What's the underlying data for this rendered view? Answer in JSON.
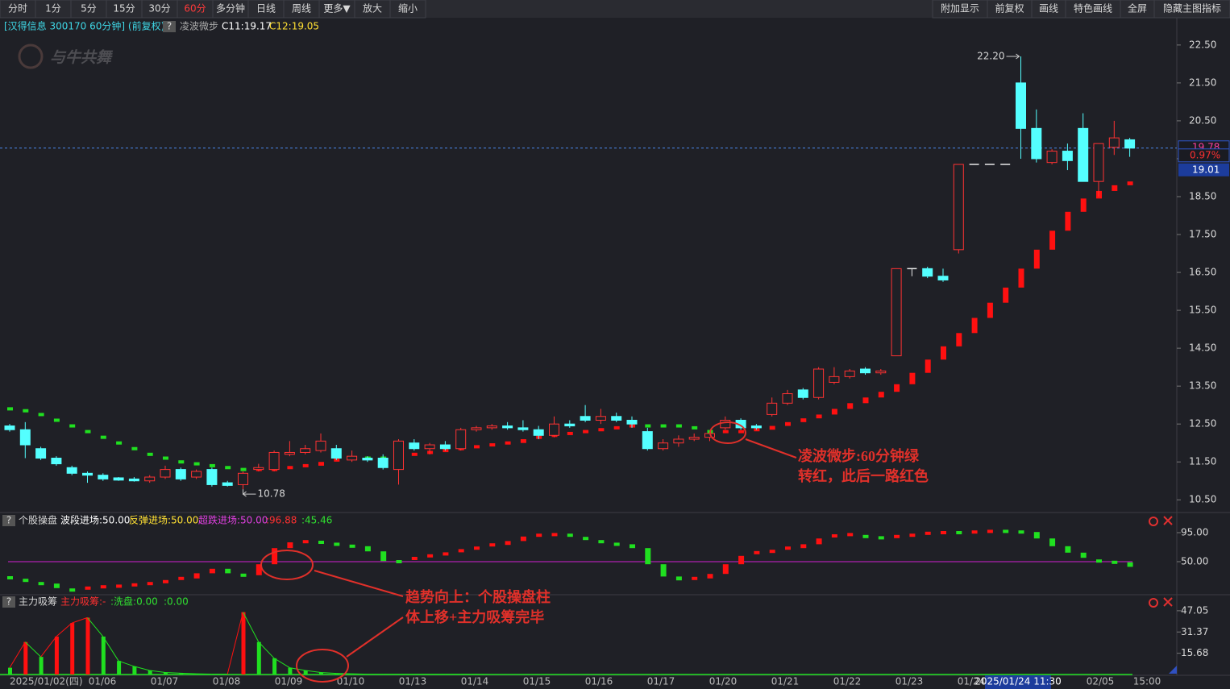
{
  "toolbar": {
    "left": [
      "分时",
      "1分",
      "5分",
      "15分",
      "30分",
      "60分",
      "多分钟",
      "日线",
      "周线",
      "更多▼",
      "放大",
      "缩小"
    ],
    "right": [
      "附加显示",
      "前复权",
      "画线",
      "特色画线",
      "全屏",
      "隐藏主图指标"
    ],
    "active": "60分"
  },
  "logo": "与牛共舞",
  "main": {
    "title": "[汉得信息 300170 60分钟] (前复权)",
    "help": "?",
    "indicator": "凌波微步",
    "c11": "C11:19.17",
    "c12": "C12:19.05",
    "ylim": [
      10.25,
      23.22
    ],
    "yticks": [
      {
        "value": 10.5,
        "label": "10.50"
      },
      {
        "value": 11.5,
        "label": "11.50"
      },
      {
        "value": 12.5,
        "label": "12.50"
      },
      {
        "value": 13.5,
        "label": "13.50"
      },
      {
        "value": 14.5,
        "label": "14.50"
      },
      {
        "value": 15.5,
        "label": "15.50"
      },
      {
        "value": 16.5,
        "label": "16.50"
      },
      {
        "value": 17.5,
        "label": "17.50"
      },
      {
        "value": 18.5,
        "label": "18.50"
      },
      {
        "value": 19.5,
        "label": "19.50"
      },
      {
        "value": 20.5,
        "label": "20.50"
      },
      {
        "value": 21.5,
        "label": "21.50"
      },
      {
        "value": 22.5,
        "label": "22.50"
      }
    ],
    "candles": [
      [
        12.45,
        12.5,
        12.3,
        12.35
      ],
      [
        12.35,
        12.55,
        11.6,
        11.95
      ],
      [
        11.85,
        11.9,
        11.55,
        11.6
      ],
      [
        11.6,
        11.65,
        11.4,
        11.45
      ],
      [
        11.35,
        11.4,
        11.15,
        11.2
      ],
      [
        11.2,
        11.25,
        10.95,
        11.15
      ],
      [
        11.15,
        11.2,
        11.0,
        11.05
      ],
      [
        11.08,
        11.1,
        11.0,
        11.02
      ],
      [
        11.05,
        11.1,
        10.98,
        11.0
      ],
      [
        11.0,
        11.15,
        10.95,
        11.1
      ],
      [
        11.1,
        11.4,
        11.05,
        11.3
      ],
      [
        11.3,
        11.35,
        11.0,
        11.05
      ],
      [
        11.1,
        11.3,
        11.05,
        11.25
      ],
      [
        11.3,
        11.35,
        10.85,
        10.9
      ],
      [
        10.95,
        11.0,
        10.85,
        10.88
      ],
      [
        10.9,
        11.25,
        10.78,
        11.2
      ],
      [
        11.3,
        11.45,
        11.25,
        11.35
      ],
      [
        11.3,
        11.8,
        11.25,
        11.75
      ],
      [
        11.7,
        12.05,
        11.65,
        11.75
      ],
      [
        11.75,
        11.95,
        11.7,
        11.85
      ],
      [
        11.8,
        12.25,
        11.75,
        12.05
      ],
      [
        11.85,
        11.95,
        11.55,
        11.6
      ],
      [
        11.55,
        11.8,
        11.5,
        11.65
      ],
      [
        11.6,
        11.65,
        11.5,
        11.55
      ],
      [
        11.6,
        11.7,
        11.3,
        11.35
      ],
      [
        11.3,
        12.1,
        10.9,
        12.05
      ],
      [
        12.0,
        12.1,
        11.8,
        11.85
      ],
      [
        11.85,
        12.0,
        11.7,
        11.95
      ],
      [
        11.95,
        12.05,
        11.8,
        11.85
      ],
      [
        11.85,
        12.4,
        11.8,
        12.35
      ],
      [
        12.35,
        12.45,
        12.3,
        12.4
      ],
      [
        12.4,
        12.5,
        12.35,
        12.45
      ],
      [
        12.45,
        12.55,
        12.35,
        12.4
      ],
      [
        12.4,
        12.6,
        12.3,
        12.35
      ],
      [
        12.35,
        12.45,
        12.1,
        12.2
      ],
      [
        12.2,
        12.7,
        12.15,
        12.5
      ],
      [
        12.5,
        12.6,
        12.4,
        12.45
      ],
      [
        12.7,
        13.0,
        12.55,
        12.6
      ],
      [
        12.6,
        12.9,
        12.5,
        12.7
      ],
      [
        12.7,
        12.8,
        12.55,
        12.6
      ],
      [
        12.6,
        12.7,
        12.4,
        12.5
      ],
      [
        12.3,
        12.4,
        11.8,
        11.85
      ],
      [
        11.85,
        12.1,
        11.8,
        12.0
      ],
      [
        12.0,
        12.2,
        11.9,
        12.1
      ],
      [
        12.1,
        12.25,
        12.05,
        12.15
      ],
      [
        12.15,
        12.3,
        12.05,
        12.25
      ],
      [
        12.4,
        12.7,
        12.35,
        12.6
      ],
      [
        12.6,
        12.65,
        12.35,
        12.4
      ],
      [
        12.45,
        12.5,
        12.35,
        12.4
      ],
      [
        12.75,
        13.2,
        12.7,
        13.05
      ],
      [
        13.05,
        13.4,
        13.0,
        13.3
      ],
      [
        13.4,
        13.45,
        13.15,
        13.2
      ],
      [
        13.2,
        14.0,
        13.15,
        13.95
      ],
      [
        13.6,
        14.0,
        13.55,
        13.75
      ],
      [
        13.75,
        13.95,
        13.7,
        13.9
      ],
      [
        13.95,
        14.0,
        13.8,
        13.85
      ],
      [
        13.85,
        13.95,
        13.8,
        13.9
      ],
      [
        14.3,
        16.6,
        14.3,
        16.6
      ],
      [
        16.6,
        16.6,
        16.4,
        16.6
      ],
      [
        16.6,
        16.65,
        16.35,
        16.4
      ],
      [
        16.4,
        16.6,
        16.25,
        16.3
      ],
      [
        17.1,
        19.35,
        17.0,
        19.35
      ],
      [
        19.35,
        19.35,
        19.35,
        19.35
      ],
      [
        19.35,
        19.35,
        19.35,
        19.35
      ],
      [
        19.35,
        19.35,
        19.35,
        19.35
      ],
      [
        21.5,
        22.2,
        19.5,
        20.3
      ],
      [
        20.3,
        20.8,
        19.4,
        19.5
      ],
      [
        19.4,
        19.75,
        19.35,
        19.7
      ],
      [
        19.7,
        19.9,
        19.2,
        19.45
      ],
      [
        20.3,
        20.7,
        18.9,
        18.9
      ],
      [
        18.9,
        19.9,
        18.5,
        19.9
      ],
      [
        19.8,
        20.5,
        19.6,
        20.05
      ],
      [
        20.0,
        20.05,
        19.55,
        19.78
      ]
    ],
    "signal": [
      12.9,
      12.85,
      12.75,
      12.6,
      12.45,
      12.3,
      12.15,
      12.0,
      11.85,
      11.7,
      11.6,
      11.5,
      11.45,
      11.4,
      11.35,
      11.3,
      11.25,
      11.3,
      11.35,
      11.4,
      11.5,
      11.55,
      11.6,
      11.6,
      11.6,
      11.65,
      11.7,
      11.75,
      11.8,
      11.85,
      11.9,
      11.95,
      12.0,
      12.1,
      12.15,
      12.2,
      12.25,
      12.3,
      12.35,
      12.4,
      12.45,
      12.45,
      12.45,
      12.45,
      12.4,
      12.3,
      12.25,
      12.3,
      12.35,
      12.45,
      12.55,
      12.65,
      12.75,
      12.9,
      13.05,
      13.2,
      13.35,
      13.55,
      13.85,
      14.2,
      14.55,
      14.9,
      15.3,
      15.7,
      16.1,
      16.6,
      17.1,
      17.6,
      18.1,
      18.45,
      18.65,
      18.8,
      18.9
    ],
    "last_price": 19.78,
    "change": "0.97%",
    "cursor_price": 19.01,
    "max_marker": {
      "value": 22.2,
      "label": "22.20"
    },
    "min_marker": 10.78
  },
  "sub1": {
    "help": "?",
    "name": "个股操盘",
    "labels": [
      "波段进场:50.00",
      "反弹进场:50.00",
      "超跌进场:50.00",
      ":96.88",
      ":45.46"
    ],
    "level": 50,
    "ylim": [
      2.5,
      106.25
    ],
    "yticks": [
      {
        "value": 50,
        "label": "50.00"
      },
      {
        "value": 95,
        "label": "95.00"
      }
    ],
    "values": [
      25,
      21,
      16,
      9,
      6,
      9,
      11,
      12,
      14,
      16,
      19,
      24,
      32,
      39,
      32,
      29,
      46,
      71,
      80,
      81,
      80,
      77,
      74,
      66,
      51,
      50,
      55,
      59,
      62,
      67,
      71,
      76,
      82,
      89,
      91,
      92,
      91,
      86,
      81,
      77,
      71,
      46,
      27,
      21,
      24,
      31,
      46,
      59,
      64,
      66,
      71,
      77,
      86,
      90,
      92,
      89,
      87,
      89,
      91,
      94,
      95,
      95,
      96,
      97,
      97,
      96,
      86,
      74,
      64,
      56,
      51,
      49,
      42
    ]
  },
  "sub2": {
    "help": "?",
    "name": "主力吸筹",
    "labels": [
      "主力吸筹:-",
      ":洗盘:0.00",
      ":0.00"
    ],
    "ylim": [
      0,
      56.5
    ],
    "yticks": [
      15.68,
      31.37,
      47.05
    ],
    "values": [
      5,
      24,
      13,
      28,
      38,
      42,
      28,
      10,
      6,
      3,
      1.5,
      1,
      0.5,
      0.3,
      0.3,
      46,
      24,
      12,
      5,
      3,
      1.5,
      0.8,
      0.5,
      0.2,
      0.2,
      0.2,
      0.2,
      0.2,
      0.2,
      0.2,
      0.2,
      0,
      0,
      0,
      0,
      0,
      0,
      0,
      0,
      0,
      0,
      0,
      0,
      0,
      0,
      0,
      0,
      0,
      0,
      0,
      0,
      0,
      0,
      0,
      0,
      0,
      0,
      0,
      0,
      0,
      0,
      0,
      0,
      0,
      0,
      0,
      0,
      0,
      0,
      0,
      0,
      0,
      0
    ]
  },
  "annotations": [
    [
      "凌波微步:60分钟绿",
      "转红，此后一路红色"
    ],
    [
      "趋势向上：个股操盘柱",
      "体上移+主力吸筹完毕"
    ]
  ],
  "dates": [
    "2025/01/02(四)",
    "01/06",
    "01/07",
    "01/08",
    "01/09",
    "01/10",
    "01/13",
    "01/14",
    "01/15",
    "01/16",
    "01/17",
    "01/20",
    "01/21",
    "01/22",
    "01/23",
    "01/24"
  ],
  "cursor_time": "2025/01/24 11:30",
  "dates_after": [
    "02/05",
    "15:00"
  ]
}
